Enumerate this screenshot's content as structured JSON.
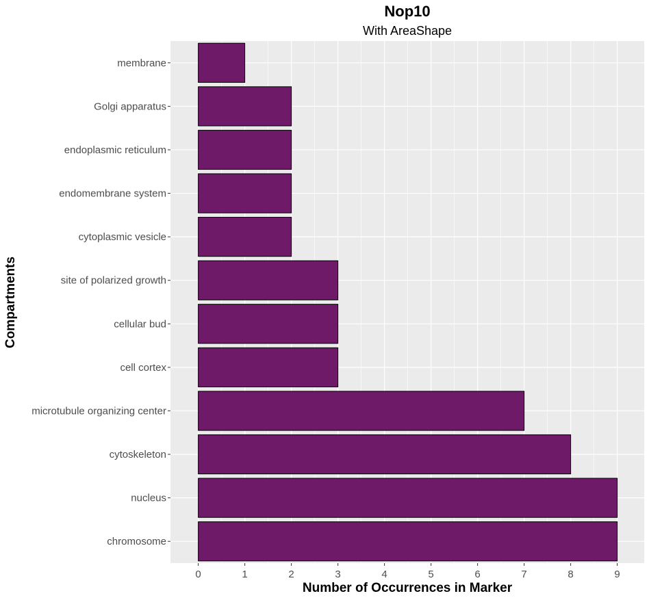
{
  "chart_data": {
    "type": "bar",
    "orientation": "horizontal",
    "title": "Nop10",
    "subtitle": "With AreaShape",
    "xlabel": "Number of Occurrences in Marker",
    "ylabel": "Compartments",
    "xlim": [
      0,
      9
    ],
    "x_ticks": [
      0,
      1,
      2,
      3,
      4,
      5,
      6,
      7,
      8,
      9
    ],
    "grid": true,
    "categories": [
      "membrane",
      "Golgi apparatus",
      "endoplasmic reticulum",
      "endomembrane system",
      "cytoplasmic vesicle",
      "site of polarized growth",
      "cellular bud",
      "cell cortex",
      "microtubule organizing center",
      "cytoskeleton",
      "nucleus",
      "chromosome"
    ],
    "values": [
      1,
      2,
      2,
      2,
      2,
      3,
      3,
      3,
      7,
      8,
      9,
      9
    ],
    "colors": {
      "bar_fill": "#6e1a69",
      "bar_stroke": "#000000",
      "panel_background": "#ebebeb",
      "grid": "#ffffff"
    }
  }
}
